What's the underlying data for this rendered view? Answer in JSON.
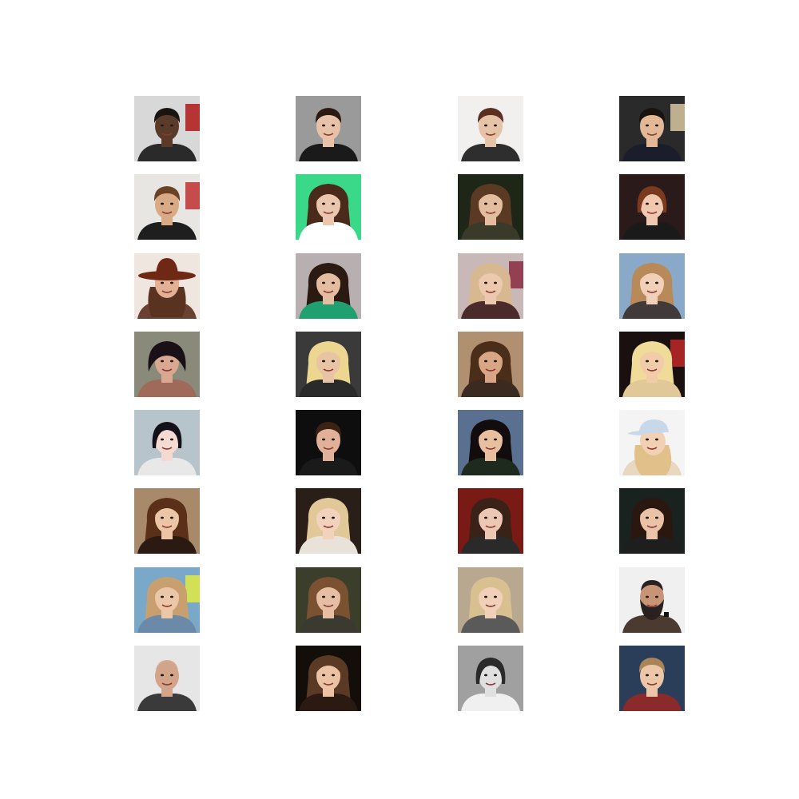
{
  "grid": {
    "rows": 8,
    "cols": 4,
    "tiles": [
      {
        "bg": "#d8d8d8",
        "skin": "#5a3b2a",
        "hair": "#1a1410",
        "hair_style": "short",
        "shirt": "#2a2a2a",
        "accent": "#b01818"
      },
      {
        "bg": "#9a9a9a",
        "skin": "#e8c2a8",
        "hair": "#2a1a12",
        "hair_style": "short",
        "shirt": "#1a1a1a",
        "accent": ""
      },
      {
        "bg": "#f2f0ee",
        "skin": "#e6c2a6",
        "hair": "#5a3020",
        "hair_style": "short",
        "shirt": "#2e2e2e",
        "accent": ""
      },
      {
        "bg": "#2a2a2a",
        "skin": "#e2b896",
        "hair": "#1a120c",
        "hair_style": "short",
        "shirt": "#1a1e2a",
        "accent": "#d8c8a0"
      },
      {
        "bg": "#e8e6e2",
        "skin": "#d8aa86",
        "hair": "#6a4226",
        "hair_style": "short",
        "shirt": "#1e1e1e",
        "accent": "#c03030"
      },
      {
        "bg": "#3ad889",
        "skin": "#eac6ae",
        "hair": "#4a2a1a",
        "hair_style": "long",
        "shirt": "#ffffff",
        "accent": ""
      },
      {
        "bg": "#1e2618",
        "skin": "#e4bc9e",
        "hair": "#5a3a22",
        "hair_style": "long",
        "shirt": "#3a3a2a",
        "accent": ""
      },
      {
        "bg": "#2a1a1a",
        "skin": "#f0c8b0",
        "hair": "#7a3a1e",
        "hair_style": "bob",
        "shirt": "#1a1a1a",
        "accent": ""
      },
      {
        "bg": "#efe6e0",
        "skin": "#e2b094",
        "hair": "#5a3220",
        "hair_style": "hat",
        "shirt": "#6a4030",
        "accent": "#6e2814"
      },
      {
        "bg": "#b8b0b0",
        "skin": "#e4bca2",
        "hair": "#2a1a12",
        "hair_style": "long",
        "shirt": "#20a070",
        "accent": ""
      },
      {
        "bg": "#c8b8b8",
        "skin": "#ecc8ae",
        "hair": "#d8b890",
        "hair_style": "long",
        "shirt": "#4a2a2a",
        "accent": "#8a2a40"
      },
      {
        "bg": "#8aa8c8",
        "skin": "#f0d0b8",
        "hair": "#b88a5a",
        "hair_style": "curly",
        "shirt": "#403a3a",
        "accent": ""
      },
      {
        "bg": "#8a8a7a",
        "skin": "#d8a890",
        "hair": "#1a1018",
        "hair_style": "down",
        "shirt": "#a06a5a",
        "accent": ""
      },
      {
        "bg": "#3a3a3a",
        "skin": "#e8c4a4",
        "hair": "#ecd690",
        "hair_style": "long",
        "shirt": "#2a2a2a",
        "accent": ""
      },
      {
        "bg": "#b09070",
        "skin": "#d8a684",
        "hair": "#4a2e1a",
        "hair_style": "long",
        "shirt": "#3a2a20",
        "accent": ""
      },
      {
        "bg": "#1a1010",
        "skin": "#f0cca8",
        "hair": "#f0dc98",
        "hair_style": "long",
        "shirt": "#e0c898",
        "accent": "#c02828"
      },
      {
        "bg": "#b8c4cc",
        "skin": "#f4dad0",
        "hair": "#14101a",
        "hair_style": "bob",
        "shirt": "#e8e8e8",
        "accent": ""
      },
      {
        "bg": "#0e0e0e",
        "skin": "#e0b098",
        "hair": "#3a2214",
        "hair_style": "short",
        "shirt": "#1a1a1a",
        "accent": ""
      },
      {
        "bg": "#5a7090",
        "skin": "#e8c0a0",
        "hair": "#120c0c",
        "hair_style": "curly",
        "shirt": "#1e2a1e",
        "accent": ""
      },
      {
        "bg": "#f4f4f4",
        "skin": "#f2d0b4",
        "hair": "#e2c08a",
        "hair_style": "cap",
        "shirt": "#e8d8c0",
        "accent": "#c8d8e8"
      },
      {
        "bg": "#a88a6a",
        "skin": "#ecc4a6",
        "hair": "#5a3018",
        "hair_style": "long",
        "shirt": "#2a1a12",
        "accent": ""
      },
      {
        "bg": "#2a1e18",
        "skin": "#f2d2bc",
        "hair": "#e2c898",
        "hair_style": "long",
        "shirt": "#e8e2d8",
        "accent": ""
      },
      {
        "bg": "#7a1a14",
        "skin": "#ecc8b4",
        "hair": "#3a2218",
        "hair_style": "long",
        "shirt": "#2a2a2a",
        "accent": ""
      },
      {
        "bg": "#1a2220",
        "skin": "#eac2a8",
        "hair": "#2a1810",
        "hair_style": "long",
        "shirt": "#1e1e1e",
        "accent": ""
      },
      {
        "bg": "#7aa8c8",
        "skin": "#ecc6a8",
        "hair": "#c8a070",
        "hair_style": "long",
        "shirt": "#6a8aa8",
        "accent": "#e0ea40"
      },
      {
        "bg": "#3a3e2a",
        "skin": "#e6bea4",
        "hair": "#7a5232",
        "hair_style": "long",
        "shirt": "#3a3a30",
        "accent": ""
      },
      {
        "bg": "#b8a890",
        "skin": "#f0d0b8",
        "hair": "#d8c090",
        "hair_style": "long",
        "shirt": "#5a5a5a",
        "accent": ""
      },
      {
        "bg": "#f0f0f0",
        "skin": "#c89476",
        "hair": "#2a2020",
        "hair_style": "beard",
        "shirt": "#4a3a30",
        "accent": "#5a3a2a"
      },
      {
        "bg": "#e6e6e6",
        "skin": "#d2a48a",
        "hair": "#d2a48a",
        "hair_style": "bald",
        "shirt": "#3a3a3a",
        "accent": ""
      },
      {
        "bg": "#140e0a",
        "skin": "#ecc2a4",
        "hair": "#5a3a24",
        "hair_style": "long",
        "shirt": "#2a1a12",
        "accent": ""
      },
      {
        "bg": "#a0a0a0",
        "skin": "#e0e0e0",
        "hair": "#2a2a2a",
        "hair_style": "bob",
        "shirt": "#f0f0f0",
        "accent": ""
      },
      {
        "bg": "#2a3e5a",
        "skin": "#ecc6a8",
        "hair": "#a88458",
        "hair_style": "short",
        "shirt": "#8a2a2a",
        "accent": ""
      }
    ]
  }
}
